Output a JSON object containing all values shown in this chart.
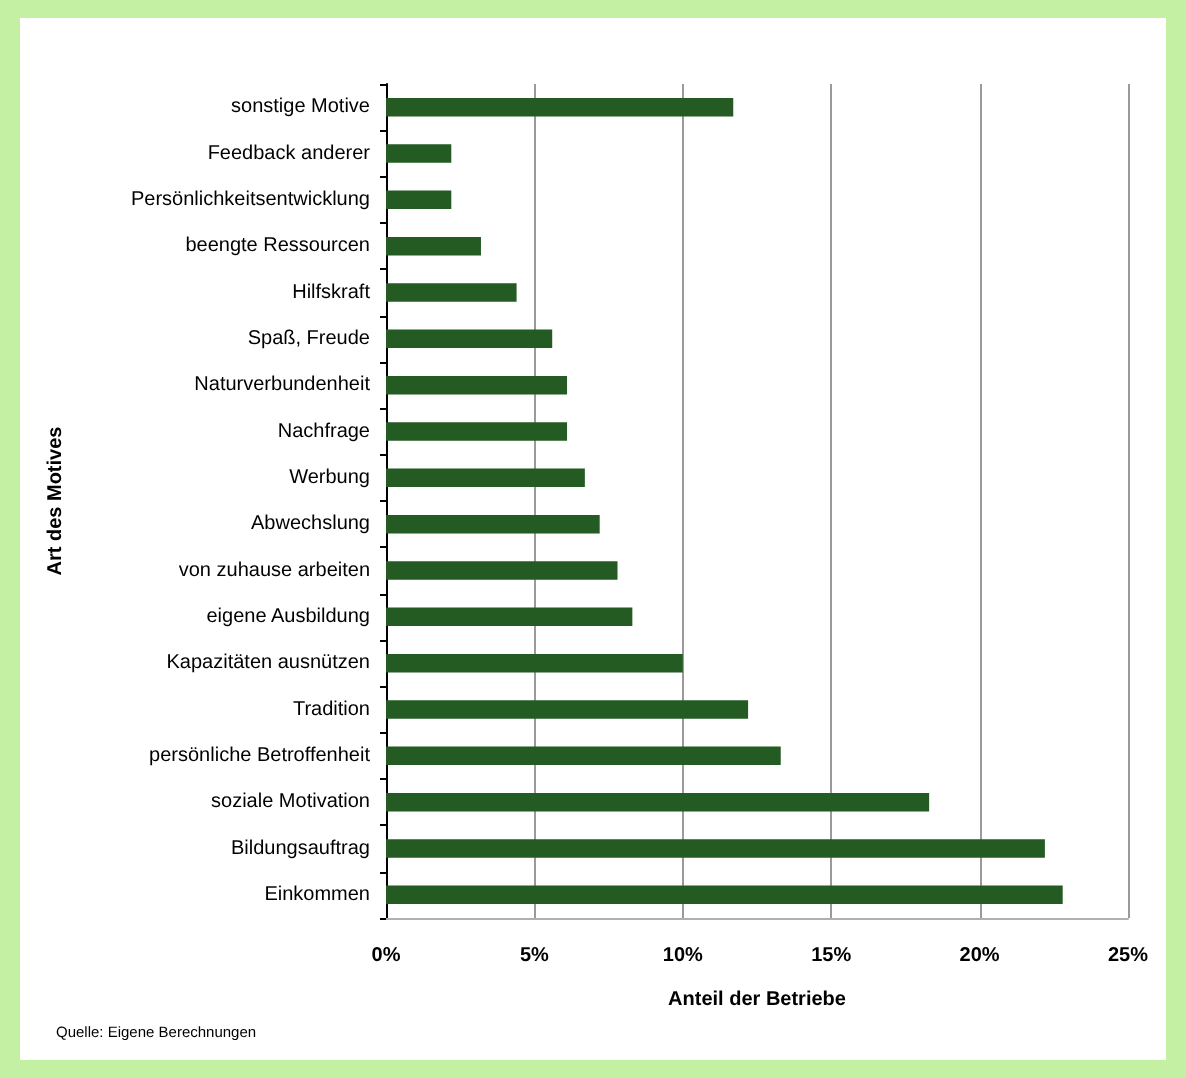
{
  "chart_data": {
    "type": "bar",
    "orientation": "horizontal",
    "categories": [
      "sonstige Motive",
      "Feedback anderer",
      "Persönlichkeitsentwicklung",
      "beengte Ressourcen",
      "Hilfskraft",
      "Spaß, Freude",
      "Naturverbundenheit",
      "Nachfrage",
      "Werbung",
      "Abwechslung",
      "von zuhause arbeiten",
      "eigene Ausbildung",
      "Kapazitäten ausnützen",
      "Tradition",
      "persönliche Betroffenheit",
      "soziale Motivation",
      "Bildungsauftrag",
      "Einkommen"
    ],
    "values": [
      11.7,
      2.2,
      2.2,
      3.2,
      4.4,
      5.6,
      6.1,
      6.1,
      6.7,
      7.2,
      7.8,
      8.3,
      10.0,
      12.2,
      13.3,
      18.3,
      22.2,
      22.8
    ],
    "color": "#235b23",
    "xlabel": "Anteil der Betriebe",
    "ylabel": "Art des Motives",
    "xlim": [
      0,
      25
    ],
    "xticks": [
      {
        "value": 0,
        "label": "0%"
      },
      {
        "value": 5,
        "label": "5%"
      },
      {
        "value": 10,
        "label": "10%"
      },
      {
        "value": 15,
        "label": "15%"
      },
      {
        "value": 20,
        "label": "20%"
      },
      {
        "value": 25,
        "label": "25%"
      }
    ],
    "grid": "x",
    "annotations": [
      "Quelle: Eigene Berechnungen"
    ]
  }
}
